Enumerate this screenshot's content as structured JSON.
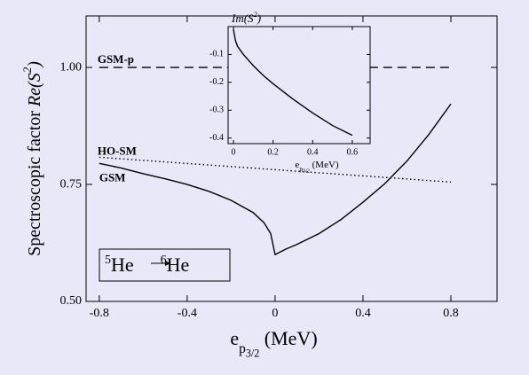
{
  "chart_data": [
    {
      "type": "line",
      "ylabel": {
        "text": "Spectroscopic  factor ",
        "italic": "Re(S",
        "sup": "2",
        "close": ")"
      },
      "xlabel": {
        "main": "e",
        "sub": "p",
        "subsub": "3/2",
        "unit": " (MeV)"
      },
      "xlim": [
        -0.86,
        1.01
      ],
      "ylim": [
        0.5,
        1.11
      ],
      "xticks": [
        -0.8,
        -0.4,
        0,
        0.4,
        0.8
      ],
      "yticks": [
        {
          "value": 0.5,
          "label": "0.50"
        },
        0.75,
        {
          "value": 1.0,
          "label": "1.00"
        }
      ],
      "annotation": {
        "from_mass": "5",
        "from": "He",
        "to_mass": "6",
        "to": "He"
      },
      "series": [
        {
          "name": "GSM-p",
          "color": "#000000",
          "style": "dashed",
          "x": [
            -0.8,
            0.8
          ],
          "values": [
            1.0,
            1.0
          ]
        },
        {
          "name": "HO-SM",
          "color": "#000000",
          "style": "dotted",
          "x": [
            -0.8,
            0.8
          ],
          "values": [
            0.808,
            0.755
          ]
        },
        {
          "name": "GSM",
          "color": "#000000",
          "style": "solid",
          "x": [
            -0.8,
            -0.7,
            -0.6,
            -0.5,
            -0.4,
            -0.3,
            -0.2,
            -0.1,
            -0.05,
            -0.02,
            0,
            0.02,
            0.05,
            0.1,
            0.2,
            0.3,
            0.4,
            0.5,
            0.6,
            0.7,
            0.8
          ],
          "values": [
            0.795,
            0.785,
            0.773,
            0.762,
            0.75,
            0.735,
            0.716,
            0.69,
            0.668,
            0.645,
            0.6,
            0.605,
            0.612,
            0.622,
            0.645,
            0.675,
            0.712,
            0.752,
            0.8,
            0.857,
            0.922
          ]
        }
      ]
    },
    {
      "type": "line",
      "ylabel": {
        "text": "",
        "italic": "Im(S",
        "sup": "2",
        "close": ")"
      },
      "xlabel": {
        "main": "e",
        "sub": "p",
        "subsub": "3/2",
        "unit": " (MeV)"
      },
      "xlim": [
        -0.027,
        0.69
      ],
      "ylim": [
        -0.42,
        0
      ],
      "xticks": [
        0,
        0.2,
        0.4,
        0.6
      ],
      "yticks": [
        -0.1,
        -0.2,
        -0.3,
        -0.4
      ],
      "series": [
        {
          "color": "#000000",
          "style": "solid",
          "x": [
            0,
            0.01,
            0.02,
            0.05,
            0.1,
            0.15,
            0.2,
            0.3,
            0.4,
            0.5,
            0.6
          ],
          "values": [
            -0.01,
            -0.05,
            -0.07,
            -0.1,
            -0.14,
            -0.175,
            -0.205,
            -0.26,
            -0.31,
            -0.355,
            -0.39
          ]
        }
      ]
    }
  ]
}
